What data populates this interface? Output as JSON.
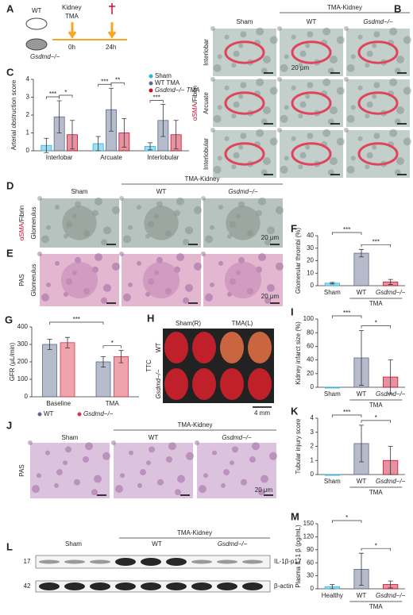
{
  "figure": {
    "A": {
      "label": "A",
      "mice": [
        "WT",
        "Gsdmd−/−"
      ],
      "procedure": [
        "Kidney",
        "TMA"
      ],
      "times": [
        "0h",
        "24h"
      ]
    },
    "B": {
      "label": "B",
      "group": "TMA-Kidney",
      "columns": [
        "Sham",
        "WT",
        "Gsdmd−/−"
      ],
      "rows": [
        "Interlobar",
        "Arcuate",
        "Interlobular"
      ],
      "stain": [
        "αSMA",
        "/Fibrin"
      ],
      "scale": "20 μm"
    },
    "D": {
      "label": "D",
      "group": "TMA-Kidney",
      "columns": [
        "Sham",
        "WT",
        "Gsdmd−/−"
      ],
      "row": "Glomerulus",
      "stain": [
        "αSMA",
        "/Fibrin"
      ],
      "scale": "20 μm"
    },
    "E": {
      "label": "E",
      "row": "Glomerulus",
      "stain": "PAS",
      "scale": "20 μm"
    },
    "H": {
      "label": "H",
      "columns": [
        "Sham(R)",
        "TMA(L)"
      ],
      "rows": [
        "WT",
        "Gsdmd−/−"
      ],
      "stain": "TTC",
      "scale": "4 mm"
    },
    "J": {
      "label": "J",
      "group": "TMA-Kidney",
      "columns": [
        "Sham",
        "WT",
        "Gsdmd−/−"
      ],
      "stain": "PAS",
      "scale": "20 μm"
    },
    "L": {
      "label": "L",
      "group": "TMA-Kidney",
      "columns": [
        "Sham",
        "WT",
        "Gsdmd−/−"
      ],
      "markers": [
        "17",
        "42"
      ],
      "bands": [
        "IL-1β-p17",
        "β-actin"
      ]
    }
  },
  "chart_data": [
    {
      "type": "grouped_bar",
      "panel": "C",
      "ylabel": "Arterial obstruction score",
      "categories": [
        "Interlobar",
        "Arcuate",
        "Interlobular"
      ],
      "series": [
        {
          "name": "Sham",
          "color": "#2bb3e0",
          "values": [
            0.3,
            0.4,
            0.25
          ],
          "errors": [
            0.4,
            0.4,
            0.2
          ]
        },
        {
          "name": "WT TMA",
          "color": "#5d6a8c",
          "values": [
            1.9,
            2.3,
            1.7
          ],
          "errors": [
            0.9,
            1.2,
            0.9
          ]
        },
        {
          "name": "Gsdmd−/− TMA",
          "color": "#c8102e",
          "values": [
            0.9,
            1.0,
            0.9
          ],
          "errors": [
            0.8,
            0.8,
            0.8
          ]
        }
      ],
      "ylim": [
        0,
        4
      ],
      "yticks": [
        0,
        1,
        2,
        3,
        4
      ],
      "legend": "upper right",
      "annotations": [
        [
          "***",
          "*"
        ],
        [
          "***",
          "**"
        ],
        [
          "***"
        ]
      ]
    },
    {
      "type": "bar",
      "panel": "F",
      "ylabel": "Glomerular thrombi (%)",
      "categories": [
        "Sham",
        "WT",
        "Gsdmd−/−"
      ],
      "group_label": "TMA",
      "values": [
        2,
        26,
        3
      ],
      "errors": [
        0.6,
        3,
        2
      ],
      "colors": [
        "#2bb3e0",
        "#5d6a8c",
        "#c8102e"
      ],
      "ylim": [
        0,
        40
      ],
      "yticks": [
        0,
        10,
        20,
        30,
        40
      ],
      "annotations": [
        "***",
        "***"
      ]
    },
    {
      "type": "grouped_bar",
      "panel": "G",
      "ylabel": "GFR (μL/min)",
      "categories": [
        "Baseline",
        "TMA"
      ],
      "series": [
        {
          "name": "WT",
          "color": "#5d6a8c",
          "values": [
            300,
            200
          ],
          "errors": [
            30,
            30
          ]
        },
        {
          "name": "Gsdmd−/−",
          "color": "#d9334a",
          "values": [
            310,
            230
          ],
          "errors": [
            30,
            35
          ]
        }
      ],
      "ylim": [
        0,
        400
      ],
      "yticks": [
        0,
        100,
        200,
        300,
        400
      ],
      "legend": "bottom",
      "annotations": [
        "***",
        "*"
      ]
    },
    {
      "type": "bar",
      "panel": "I",
      "ylabel": "Kidney infarct size (%)",
      "categories": [
        "Sham",
        "WT",
        "Gsdmd−/−"
      ],
      "group_label": "TMA",
      "values": [
        0,
        43,
        15
      ],
      "errors": [
        0,
        40,
        25
      ],
      "colors": [
        "#2bb3e0",
        "#5d6a8c",
        "#c8102e"
      ],
      "ylim": [
        0,
        100
      ],
      "yticks": [
        0,
        20,
        40,
        60,
        80,
        100
      ],
      "annotations": [
        "***",
        "*"
      ]
    },
    {
      "type": "bar",
      "panel": "K",
      "ylabel": "Tubular injury score",
      "categories": [
        "Sham",
        "WT",
        "Gsdmd−/−"
      ],
      "group_label": "TMA",
      "values": [
        0,
        2.2,
        1.0
      ],
      "errors": [
        0,
        1.3,
        1.0
      ],
      "colors": [
        "#2bb3e0",
        "#5d6a8c",
        "#c8102e"
      ],
      "ylim": [
        0,
        4
      ],
      "yticks": [
        0,
        1,
        2,
        3,
        4
      ],
      "annotations": [
        "***",
        "*"
      ]
    },
    {
      "type": "bar",
      "panel": "M",
      "ylabel": "Plasma IL-1 β (pg/mL)",
      "categories": [
        "Healthy",
        "WT",
        "Gsdmd−/−"
      ],
      "group_label": "TMA",
      "values": [
        5,
        45,
        10
      ],
      "errors": [
        5,
        37,
        8
      ],
      "colors": [
        "#2bb3e0",
        "#5d6a8c",
        "#c8102e"
      ],
      "ylim": [
        0,
        150
      ],
      "yticks": [
        0,
        30,
        60,
        90,
        120,
        150
      ],
      "annotations": [
        "*",
        "*"
      ]
    }
  ]
}
